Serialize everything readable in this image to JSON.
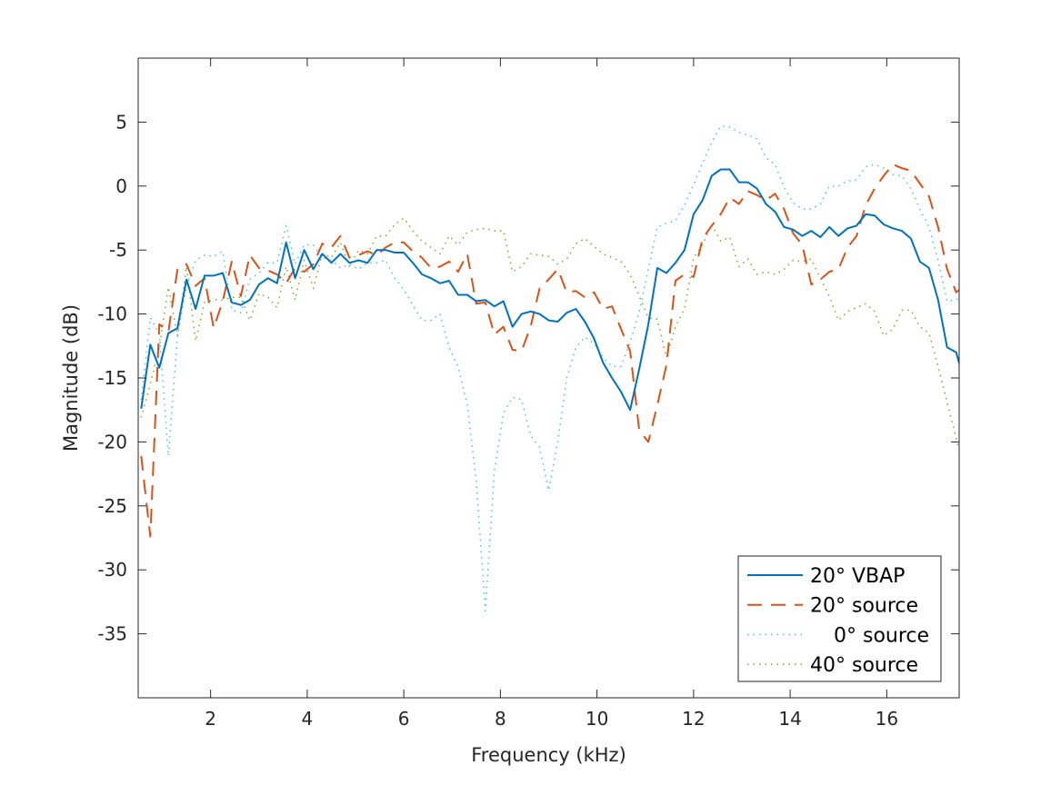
{
  "chart_data": {
    "type": "line",
    "title": "",
    "xlabel": "Frequency (kHz)",
    "ylabel": "Magnitude (dB)",
    "xlim": [
      0.5,
      17.5
    ],
    "ylim": [
      -40,
      10
    ],
    "xticks": [
      2,
      4,
      6,
      8,
      10,
      12,
      14,
      16
    ],
    "yticks": [
      5,
      0,
      -5,
      -10,
      -15,
      -20,
      -25,
      -30,
      -35
    ],
    "grid": false,
    "legend_position": "bottom-right",
    "x_start": 0.5625,
    "x_step": 0.1875,
    "series": [
      {
        "name": "20° VBAP",
        "color": "#0072BD",
        "style": "solid",
        "values": [
          -17.4,
          -12.4,
          -14.2,
          -11.5,
          -11.1,
          -7.3,
          -9.6,
          -7.0,
          -7.0,
          -6.8,
          -9.1,
          -9.3,
          -8.9,
          -7.7,
          -7.2,
          -7.6,
          -4.4,
          -7.2,
          -5.0,
          -6.5,
          -5.3,
          -6.0,
          -5.3,
          -6.0,
          -5.8,
          -6.0,
          -5.0,
          -5.0,
          -5.2,
          -5.2,
          -6.0,
          -6.9,
          -7.2,
          -7.6,
          -7.4,
          -8.5,
          -8.5,
          -9.0,
          -8.9,
          -9.4,
          -9.0,
          -11.0,
          -10.0,
          -9.8,
          -10.0,
          -10.5,
          -10.6,
          -9.9,
          -9.6,
          -10.6,
          -11.9,
          -13.8,
          -15.0,
          -16.1,
          -17.5,
          -14.3,
          -10.8,
          -6.4,
          -6.8,
          -6.0,
          -5.0,
          -2.2,
          -1.1,
          0.8,
          1.3,
          1.3,
          0.3,
          0.3,
          -0.2,
          -1.4,
          -2.0,
          -3.2,
          -3.4,
          -3.9,
          -3.5,
          -4.0,
          -3.2,
          -3.9,
          -3.3,
          -3.1,
          -2.2,
          -2.3,
          -3.0,
          -3.3,
          -3.5,
          -4.1,
          -5.9,
          -6.4,
          -8.9,
          -12.6,
          -13.0,
          -15.5
        ]
      },
      {
        "name": "20° source",
        "color": "#D95319",
        "style": "dashed",
        "values": [
          -21.1,
          -27.4,
          -10.8,
          -11.4,
          -6.5,
          -6.1,
          -7.8,
          -7.2,
          -11.1,
          -9.0,
          -5.9,
          -8.6,
          -5.4,
          -6.4,
          -6.6,
          -6.9,
          -7.6,
          -6.4,
          -6.7,
          -6.1,
          -4.5,
          -4.8,
          -3.9,
          -5.6,
          -5.4,
          -5.1,
          -5.4,
          -4.8,
          -4.4,
          -4.4,
          -5.1,
          -5.6,
          -6.4,
          -6.3,
          -5.9,
          -6.7,
          -5.3,
          -9.2,
          -9.1,
          -11.6,
          -11.0,
          -12.8,
          -12.9,
          -11.0,
          -8.0,
          -7.3,
          -6.5,
          -8.3,
          -8.2,
          -8.7,
          -8.3,
          -9.6,
          -9.4,
          -11.2,
          -12.9,
          -19.1,
          -20.0,
          -17.1,
          -14.0,
          -7.4,
          -6.9,
          -7.1,
          -4.1,
          -3.1,
          -2.2,
          -0.9,
          -1.4,
          -0.4,
          -0.7,
          -1.1,
          -0.6,
          -1.8,
          -3.7,
          -4.6,
          -7.7,
          -7.3,
          -6.7,
          -6.5,
          -4.8,
          -3.9,
          -1.5,
          -0.2,
          0.8,
          1.7,
          1.4,
          1.2,
          0.2,
          -0.8,
          -3.2,
          -6.5,
          -8.3,
          -7.8
        ]
      },
      {
        "name": "0° source",
        "color": "#4DBEEE",
        "style": "dotted",
        "values": [
          -16.7,
          -10.3,
          -11.5,
          -21.1,
          -11.7,
          -7.8,
          -5.8,
          -5.4,
          -5.5,
          -5.1,
          -9.7,
          -9.9,
          -7.3,
          -6.8,
          -6.0,
          -6.0,
          -3.1,
          -6.1,
          -4.6,
          -4.6,
          -5.6,
          -5.8,
          -6.4,
          -6.1,
          -6.5,
          -6.0,
          -6.0,
          -5.8,
          -7.2,
          -8.1,
          -9.3,
          -10.5,
          -10.5,
          -10.0,
          -12.6,
          -14.1,
          -17.1,
          -23.0,
          -33.2,
          -22.3,
          -17.8,
          -16.5,
          -16.7,
          -19.5,
          -20.4,
          -23.8,
          -20.0,
          -15.0,
          -12.6,
          -11.8,
          -12.3,
          -13.4,
          -14.1,
          -14.1,
          -12.2,
          -9.8,
          -6.5,
          -3.2,
          -2.9,
          -2.7,
          -1.5,
          0.1,
          1.8,
          3.4,
          4.7,
          4.6,
          4.2,
          4.0,
          3.7,
          2.2,
          1.7,
          -0.1,
          -1.3,
          -1.8,
          -1.8,
          -1.4,
          0.0,
          0.0,
          0.4,
          0.5,
          1.5,
          1.7,
          1.4,
          0.9,
          0.8,
          -0.2,
          -1.8,
          -3.2,
          -5.8,
          -9.0,
          -8.9,
          -8.5
        ]
      },
      {
        "name": "40° source",
        "color": "#77AC30",
        "style": "dotted",
        "values": [
          -18.1,
          -15.5,
          -12.6,
          -7.9,
          -11.7,
          -6.3,
          -12.1,
          -9.1,
          -8.9,
          -8.9,
          -8.7,
          -8.7,
          -10.5,
          -8.4,
          -8.7,
          -9.5,
          -6.3,
          -8.9,
          -5.8,
          -8.0,
          -5.3,
          -5.6,
          -4.4,
          -6.3,
          -5.0,
          -5.3,
          -3.9,
          -3.9,
          -3.0,
          -2.5,
          -3.5,
          -4.3,
          -4.8,
          -5.3,
          -3.9,
          -4.6,
          -3.6,
          -3.4,
          -3.3,
          -3.5,
          -3.5,
          -6.7,
          -6.3,
          -5.3,
          -5.4,
          -5.5,
          -6.1,
          -5.7,
          -4.5,
          -4.1,
          -4.7,
          -5.3,
          -5.6,
          -5.9,
          -6.9,
          -8.6,
          -10.3,
          -10.4,
          -13.4,
          -11.0,
          -9.6,
          -5.6,
          -4.6,
          -3.0,
          -4.3,
          -4.0,
          -6.3,
          -5.7,
          -6.9,
          -6.7,
          -6.9,
          -6.5,
          -5.8,
          -5.9,
          -5.7,
          -7.2,
          -8.6,
          -10.5,
          -9.8,
          -9.5,
          -9.2,
          -9.8,
          -11.7,
          -11.2,
          -9.7,
          -9.7,
          -11.0,
          -11.5,
          -14.1,
          -16.9,
          -19.7,
          -22.5
        ]
      }
    ]
  }
}
